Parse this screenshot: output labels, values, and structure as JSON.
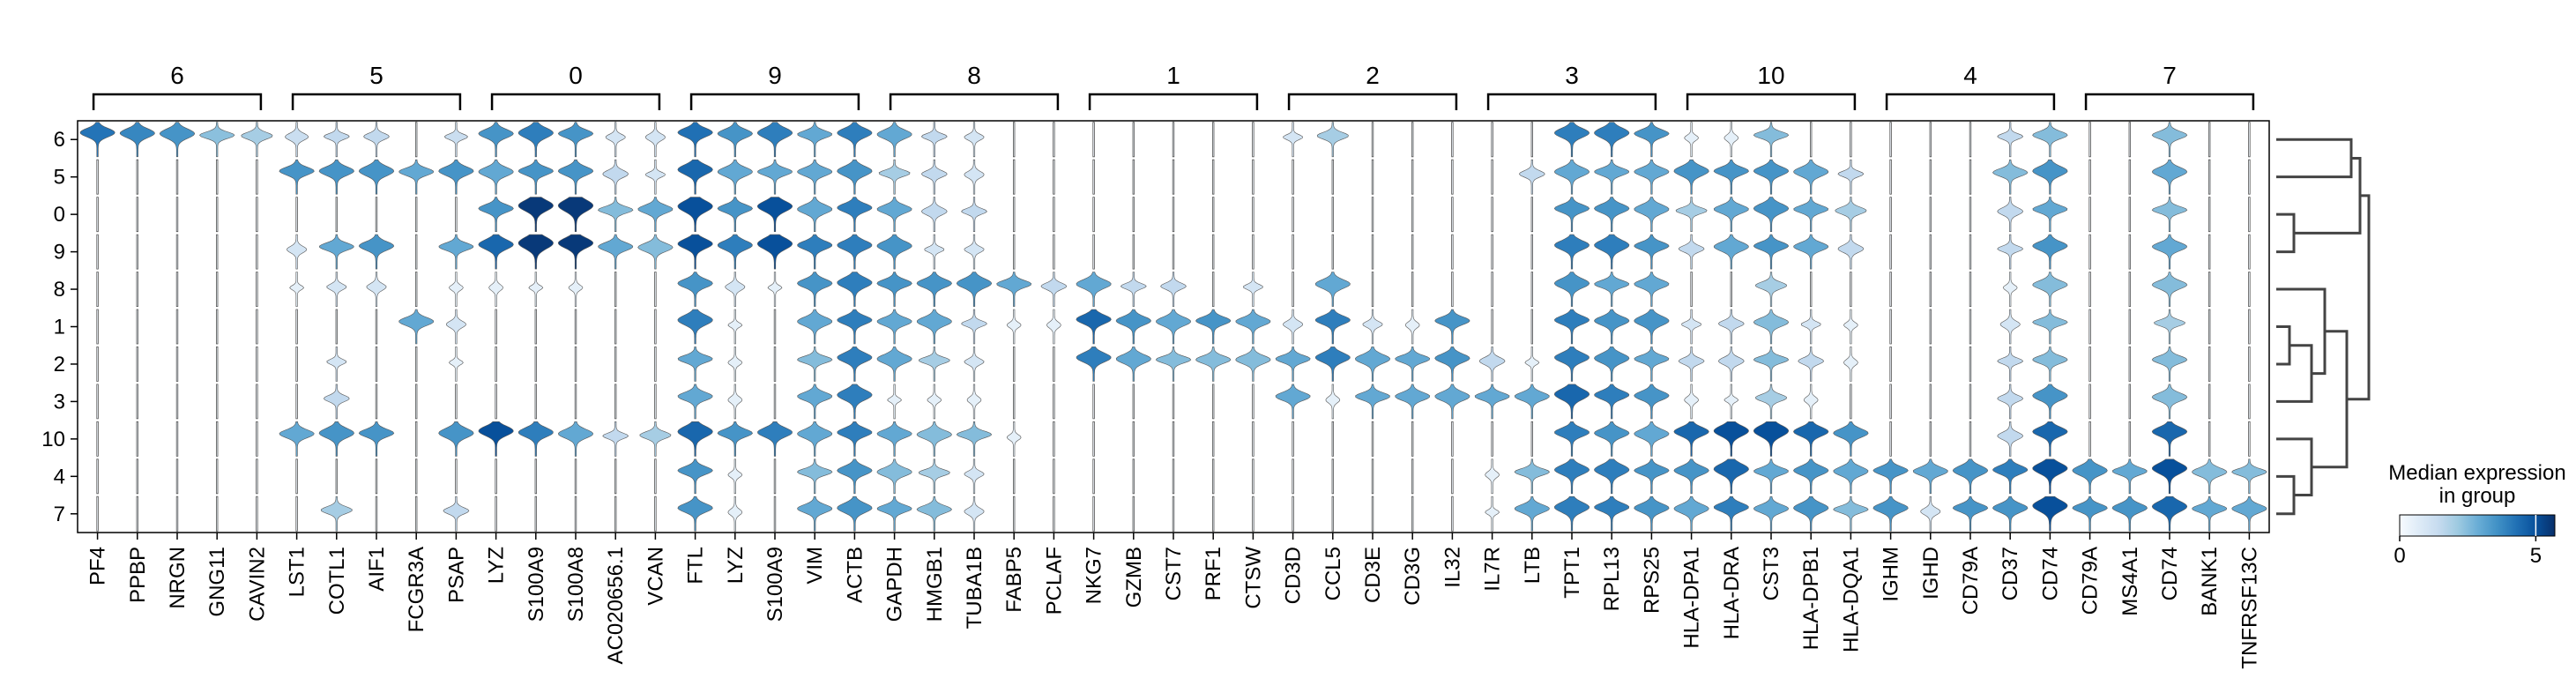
{
  "chart_data": {
    "type": "stacked-violin",
    "title": "",
    "xlabel": "",
    "ylabel": "",
    "group_order": [
      "6",
      "5",
      "0",
      "9",
      "8",
      "1",
      "2",
      "3",
      "10",
      "4",
      "7"
    ],
    "gene_groups": [
      {
        "label": "6",
        "genes": [
          "PF4",
          "PPBP",
          "NRGN",
          "GNG11",
          "CAVIN2"
        ]
      },
      {
        "label": "5",
        "genes": [
          "LST1",
          "COTL1",
          "AIF1",
          "FCGR3A",
          "PSAP"
        ]
      },
      {
        "label": "0",
        "genes": [
          "LYZ",
          "S100A9",
          "S100A8",
          "AC020656.1",
          "VCAN"
        ]
      },
      {
        "label": "9",
        "genes": [
          "FTL",
          "LYZ",
          "S100A9",
          "VIM",
          "ACTB"
        ]
      },
      {
        "label": "8",
        "genes": [
          "GAPDH",
          "HMGB1",
          "TUBA1B",
          "FABP5",
          "PCLAF"
        ]
      },
      {
        "label": "1",
        "genes": [
          "NKG7",
          "GZMB",
          "CST7",
          "PRF1",
          "CTSW"
        ]
      },
      {
        "label": "2",
        "genes": [
          "CD3D",
          "CCL5",
          "CD3E",
          "CD3G",
          "IL32"
        ]
      },
      {
        "label": "3",
        "genes": [
          "IL7R",
          "LTB",
          "TPT1",
          "RPL13",
          "RPS25"
        ]
      },
      {
        "label": "10",
        "genes": [
          "HLA-DPA1",
          "HLA-DRA",
          "CST3",
          "HLA-DPB1",
          "HLA-DQA1"
        ]
      },
      {
        "label": "4",
        "genes": [
          "IGHM",
          "IGHD",
          "CD79A",
          "CD37",
          "CD74"
        ]
      },
      {
        "label": "7",
        "genes": [
          "CD79A",
          "MS4A1",
          "CD74",
          "BANK1",
          "TNFRSF13C"
        ]
      }
    ],
    "median_expression": [
      [
        4.2,
        3.8,
        3.5,
        2.4,
        2.0,
        1.3,
        1.5,
        1.5,
        0.2,
        1.3,
        3.5,
        4.0,
        3.5,
        1.0,
        1.0,
        4.3,
        3.5,
        4.0,
        3.0,
        4.0,
        3.0,
        1.5,
        1.0,
        0.2,
        0.2,
        0.2,
        0.2,
        0.2,
        0.2,
        0.2,
        1.0,
        2.0,
        0.2,
        0.2,
        0.2,
        0.2,
        0.2,
        4.0,
        4.0,
        3.5,
        0.5,
        0.5,
        2.5,
        0.2,
        0.2,
        0.2,
        0.2,
        0.2,
        1.5,
        2.5,
        0.2,
        0.2,
        2.5,
        0.2,
        0.2
      ],
      [
        0.2,
        0.2,
        0.2,
        0.2,
        0.2,
        3.5,
        3.5,
        3.5,
        3.0,
        3.5,
        3.0,
        3.5,
        3.5,
        1.5,
        1.0,
        4.5,
        3.0,
        3.0,
        3.0,
        3.5,
        2.0,
        1.5,
        1.0,
        0.2,
        0.2,
        0.2,
        0.2,
        0.2,
        0.2,
        0.2,
        0.2,
        0.2,
        0.2,
        0.2,
        0.2,
        0.2,
        1.5,
        3.0,
        3.0,
        3.0,
        3.5,
        3.5,
        3.5,
        3.0,
        1.5,
        0.2,
        0.2,
        0.2,
        2.5,
        3.5,
        0.2,
        0.2,
        3.0,
        0.2,
        0.2
      ],
      [
        0.2,
        0.2,
        0.2,
        0.2,
        0.2,
        0.2,
        0.2,
        0.2,
        0.2,
        0.2,
        3.5,
        5.5,
        5.5,
        2.5,
        3.0,
        5.0,
        3.5,
        5.0,
        3.0,
        4.0,
        3.0,
        1.5,
        1.5,
        0.2,
        0.2,
        0.2,
        0.2,
        0.2,
        0.2,
        0.2,
        0.2,
        0.2,
        0.2,
        0.2,
        0.2,
        0.2,
        0.2,
        3.5,
        3.5,
        3.0,
        2.0,
        3.0,
        3.5,
        3.0,
        2.0,
        0.2,
        0.2,
        0.2,
        1.5,
        3.0,
        0.2,
        0.2,
        2.5,
        0.2,
        0.2
      ],
      [
        0.2,
        0.2,
        0.2,
        0.2,
        0.2,
        1.0,
        3.0,
        3.5,
        0.2,
        3.0,
        4.5,
        5.5,
        5.5,
        3.0,
        2.5,
        5.0,
        4.0,
        5.0,
        4.0,
        4.0,
        3.5,
        1.0,
        1.0,
        0.2,
        0.2,
        0.2,
        0.2,
        0.2,
        0.2,
        0.2,
        0.2,
        0.2,
        0.2,
        0.2,
        0.2,
        0.2,
        0.2,
        4.0,
        4.0,
        3.5,
        1.5,
        3.0,
        3.5,
        3.0,
        1.5,
        0.2,
        0.2,
        0.2,
        1.5,
        3.5,
        0.2,
        0.2,
        3.0,
        0.2,
        0.2
      ],
      [
        0.2,
        0.2,
        0.2,
        0.2,
        0.2,
        0.5,
        1.0,
        1.0,
        0.2,
        0.5,
        0.5,
        0.5,
        0.5,
        0.2,
        0.2,
        3.5,
        1.0,
        0.5,
        3.5,
        4.0,
        3.5,
        3.5,
        3.5,
        3.0,
        1.5,
        3.0,
        1.5,
        1.5,
        0.2,
        1.0,
        0.2,
        3.0,
        0.2,
        0.2,
        0.2,
        0.2,
        0.2,
        3.5,
        3.0,
        3.0,
        0.2,
        0.2,
        2.0,
        0.2,
        0.2,
        0.2,
        0.2,
        0.2,
        0.5,
        2.5,
        0.2,
        0.2,
        2.5,
        0.2,
        0.2
      ],
      [
        0.2,
        0.2,
        0.2,
        0.2,
        0.2,
        0.2,
        0.2,
        0.2,
        3.0,
        1.0,
        0.2,
        0.2,
        0.2,
        0.2,
        0.2,
        4.0,
        0.5,
        0.2,
        3.0,
        4.0,
        3.0,
        3.0,
        1.5,
        0.5,
        0.5,
        4.5,
        3.5,
        3.0,
        3.5,
        3.0,
        1.0,
        4.0,
        1.0,
        0.5,
        3.5,
        0.2,
        0.2,
        4.0,
        3.5,
        3.5,
        1.0,
        1.5,
        2.5,
        1.0,
        0.5,
        0.2,
        0.2,
        0.2,
        1.0,
        2.5,
        0.2,
        0.2,
        2.0,
        0.2,
        0.2
      ],
      [
        0.2,
        0.2,
        0.2,
        0.2,
        0.2,
        0.2,
        1.0,
        0.2,
        0.2,
        0.5,
        0.2,
        0.2,
        0.2,
        0.2,
        0.2,
        3.0,
        0.5,
        0.2,
        2.5,
        4.0,
        3.0,
        2.0,
        1.0,
        0.2,
        0.2,
        4.0,
        3.0,
        2.5,
        2.5,
        2.5,
        3.0,
        4.0,
        3.0,
        3.0,
        3.5,
        1.5,
        0.5,
        4.0,
        3.5,
        3.0,
        1.5,
        1.5,
        2.5,
        1.5,
        0.5,
        0.2,
        0.2,
        0.2,
        1.5,
        2.5,
        0.2,
        0.2,
        2.5,
        0.2,
        0.2
      ],
      [
        0.2,
        0.2,
        0.2,
        0.2,
        0.2,
        0.2,
        1.5,
        0.2,
        0.2,
        0.2,
        0.2,
        0.2,
        0.2,
        0.2,
        0.2,
        3.0,
        0.5,
        0.2,
        3.0,
        4.0,
        0.5,
        0.5,
        0.5,
        0.2,
        0.2,
        0.2,
        0.2,
        0.2,
        0.2,
        0.2,
        3.0,
        0.5,
        3.0,
        3.0,
        3.0,
        3.0,
        3.0,
        4.5,
        4.0,
        3.5,
        0.5,
        0.5,
        2.0,
        0.5,
        0.2,
        0.2,
        0.2,
        0.2,
        1.5,
        3.5,
        0.2,
        0.2,
        2.5,
        0.2,
        0.2
      ],
      [
        0.2,
        0.2,
        0.2,
        0.2,
        0.2,
        3.0,
        3.5,
        3.5,
        0.2,
        3.5,
        5.0,
        4.0,
        3.0,
        1.5,
        2.0,
        4.5,
        3.5,
        4.0,
        3.0,
        4.0,
        3.0,
        2.5,
        2.5,
        0.5,
        0.2,
        0.2,
        0.2,
        0.2,
        0.2,
        0.2,
        0.2,
        0.2,
        0.2,
        0.2,
        0.2,
        0.2,
        0.2,
        4.0,
        3.5,
        3.0,
        4.5,
        5.0,
        5.0,
        4.5,
        3.5,
        0.2,
        0.2,
        0.2,
        1.5,
        4.5,
        0.2,
        0.2,
        4.5,
        0.2,
        0.2
      ],
      [
        0.2,
        0.2,
        0.2,
        0.2,
        0.2,
        0.2,
        0.2,
        0.2,
        0.2,
        0.2,
        0.2,
        0.2,
        0.2,
        0.2,
        0.2,
        3.5,
        0.5,
        0.2,
        2.5,
        3.5,
        2.5,
        2.0,
        1.0,
        0.2,
        0.2,
        0.2,
        0.2,
        0.2,
        0.2,
        0.2,
        0.2,
        0.2,
        0.2,
        0.2,
        0.2,
        0.5,
        2.5,
        4.0,
        4.0,
        3.5,
        3.5,
        4.5,
        3.0,
        3.5,
        3.0,
        3.5,
        3.0,
        3.5,
        4.0,
        5.0,
        3.5,
        3.0,
        5.0,
        2.5,
        2.5
      ],
      [
        0.2,
        0.2,
        0.2,
        0.2,
        0.2,
        0.2,
        2.0,
        0.2,
        0.2,
        1.5,
        0.2,
        0.2,
        0.2,
        0.2,
        0.2,
        3.5,
        0.5,
        0.2,
        3.0,
        3.5,
        3.0,
        2.5,
        1.0,
        0.2,
        0.2,
        0.2,
        0.2,
        0.2,
        0.2,
        0.2,
        0.2,
        0.2,
        0.2,
        0.2,
        0.2,
        0.5,
        3.0,
        4.0,
        4.0,
        3.5,
        3.0,
        4.0,
        3.0,
        3.5,
        2.5,
        3.5,
        1.0,
        3.5,
        3.5,
        5.0,
        3.5,
        3.5,
        4.5,
        3.0,
        3.0
      ]
    ],
    "dendrogram_order": [
      "6",
      "5",
      "0",
      "9",
      "8",
      "1",
      "2",
      "3",
      "10",
      "4",
      "7"
    ],
    "colorbar": {
      "title": "Median expression\nin group",
      "title_lines": [
        "Median expression",
        "in group"
      ],
      "min": 0,
      "max": 5.7,
      "ticks": [
        "0",
        "5"
      ],
      "tick_values": [
        0,
        5
      ],
      "colors": [
        "#f7fbff",
        "#deebf7",
        "#c6dbef",
        "#9ecae1",
        "#6baed6",
        "#4292c6",
        "#2171b5",
        "#08519c",
        "#08306b"
      ]
    }
  }
}
